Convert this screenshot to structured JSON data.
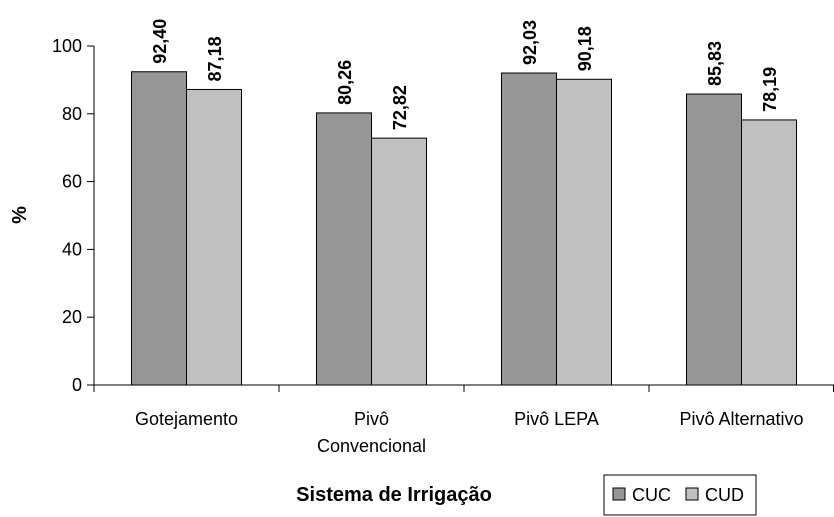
{
  "chart_data": {
    "type": "bar",
    "categories": [
      [
        "Gotejamento"
      ],
      [
        "Pivô",
        "Convencional"
      ],
      [
        "Pivô LEPA"
      ],
      [
        "Pivô Alternativo"
      ]
    ],
    "series": [
      {
        "name": "CUC",
        "values": [
          92.4,
          80.26,
          92.03,
          85.83
        ],
        "labels": [
          "92,40",
          "80,26",
          "92,03",
          "85,83"
        ],
        "color": "#969696"
      },
      {
        "name": "CUD",
        "values": [
          87.18,
          72.82,
          90.18,
          78.19
        ],
        "labels": [
          "87,18",
          "72,82",
          "90,18",
          "78,19"
        ],
        "color": "#c0c0c0"
      }
    ],
    "xlabel": "Sistema de Irrigação",
    "ylabel": "%",
    "ylim": [
      0,
      100
    ],
    "yticks": [
      0,
      20,
      40,
      60,
      80,
      100
    ],
    "grid": false,
    "legend_position": "bottom-right"
  }
}
